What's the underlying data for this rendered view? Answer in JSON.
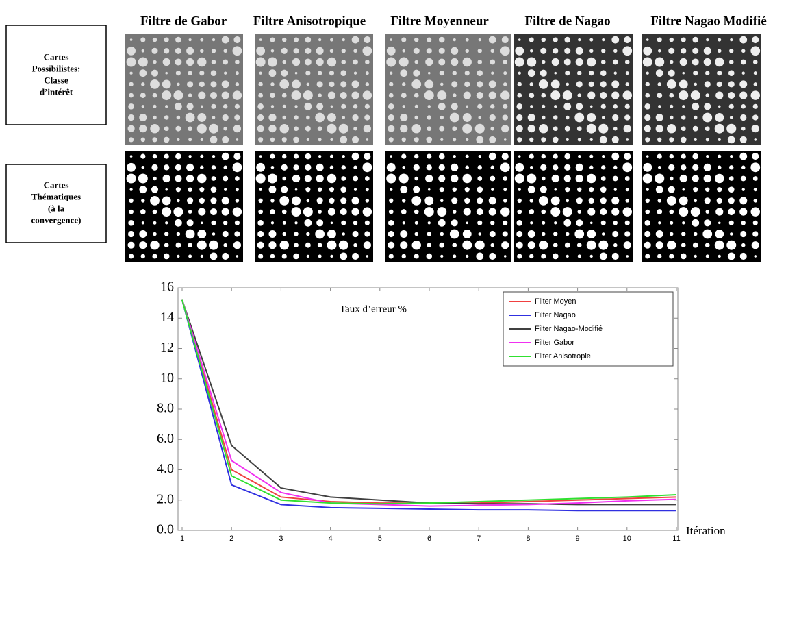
{
  "columns": [
    "Filtre de Gabor",
    "Filtre Anisotropique",
    "Filtre Moyenneur",
    "Filtre de Nagao",
    "Filtre Nagao Modifié"
  ],
  "rows": [
    [
      "Cartes",
      "Possibilistes:",
      "Classe",
      "d’intérêt"
    ],
    [
      "Cartes",
      "Thématiques",
      "(à la",
      "convergence)"
    ]
  ],
  "chart_data": {
    "type": "line",
    "annotation": "Taux d’erreur %",
    "x_label": "Itération",
    "x": [
      1,
      2,
      3,
      4,
      5,
      6,
      7,
      8,
      9,
      10,
      11
    ],
    "xlim": [
      1,
      11
    ],
    "xticks": [
      1,
      2,
      3,
      4,
      5,
      6,
      7,
      8,
      9,
      10,
      11
    ],
    "ylim": [
      0,
      16
    ],
    "yticks": [
      {
        "value": 0,
        "label": "0.0"
      },
      {
        "value": 2,
        "label": "2.0"
      },
      {
        "value": 4,
        "label": "4.0"
      },
      {
        "value": 6,
        "label": "6.0"
      },
      {
        "value": 8,
        "label": "8.0"
      },
      10,
      12,
      14,
      16
    ],
    "legend": "top-right",
    "series": [
      {
        "name": "Filter Moyen",
        "color": "#f04040",
        "values": [
          15.2,
          4.0,
          2.2,
          1.9,
          1.8,
          1.8,
          1.8,
          1.9,
          2.0,
          2.1,
          2.2
        ]
      },
      {
        "name": "Filter Nagao",
        "color": "#3030e0",
        "values": [
          15.2,
          3.0,
          1.7,
          1.5,
          1.45,
          1.4,
          1.35,
          1.35,
          1.3,
          1.3,
          1.3
        ]
      },
      {
        "name": "Filter Nagao-Modifié",
        "color": "#404040",
        "values": [
          15.2,
          5.6,
          2.8,
          2.2,
          2.0,
          1.8,
          1.75,
          1.75,
          1.7,
          1.7,
          1.7
        ]
      },
      {
        "name": "Filter Gabor",
        "color": "#f030f0",
        "values": [
          15.2,
          4.6,
          2.5,
          1.8,
          1.7,
          1.6,
          1.65,
          1.7,
          1.8,
          1.95,
          2.05
        ]
      },
      {
        "name": "Filter Anisotropie",
        "color": "#30e030",
        "values": [
          15.2,
          3.6,
          2.0,
          1.8,
          1.75,
          1.8,
          1.9,
          2.0,
          2.1,
          2.2,
          2.35
        ]
      }
    ]
  }
}
